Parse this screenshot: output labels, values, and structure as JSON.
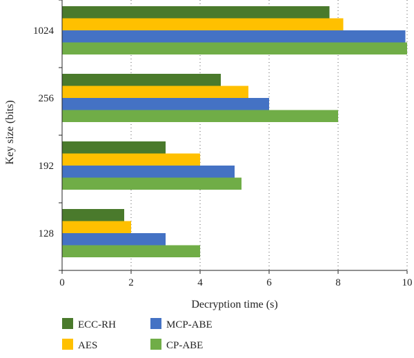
{
  "chart_data": {
    "type": "bar",
    "orientation": "horizontal",
    "categories": [
      "128",
      "192",
      "256",
      "1024"
    ],
    "series": [
      {
        "name": "ECC-RH",
        "color": "#4a7a2c",
        "values": [
          1.8,
          3.0,
          4.6,
          7.75
        ]
      },
      {
        "name": "AES",
        "color": "#ffc000",
        "values": [
          2.0,
          4.0,
          5.4,
          8.15
        ]
      },
      {
        "name": "MCP-ABE",
        "color": "#4472c4",
        "values": [
          3.0,
          5.0,
          6.0,
          9.95
        ]
      },
      {
        "name": "CP-ABE",
        "color": "#70ad47",
        "values": [
          4.0,
          5.2,
          8.0,
          10.0
        ]
      }
    ],
    "xlabel": "Decryption time (s)",
    "ylabel": "Key size (bits)",
    "xlim": [
      0,
      10
    ],
    "xticks": [
      "0",
      "2",
      "4",
      "6",
      "8",
      "10"
    ],
    "grid": "vertical dotted",
    "legend_position": "bottom"
  }
}
